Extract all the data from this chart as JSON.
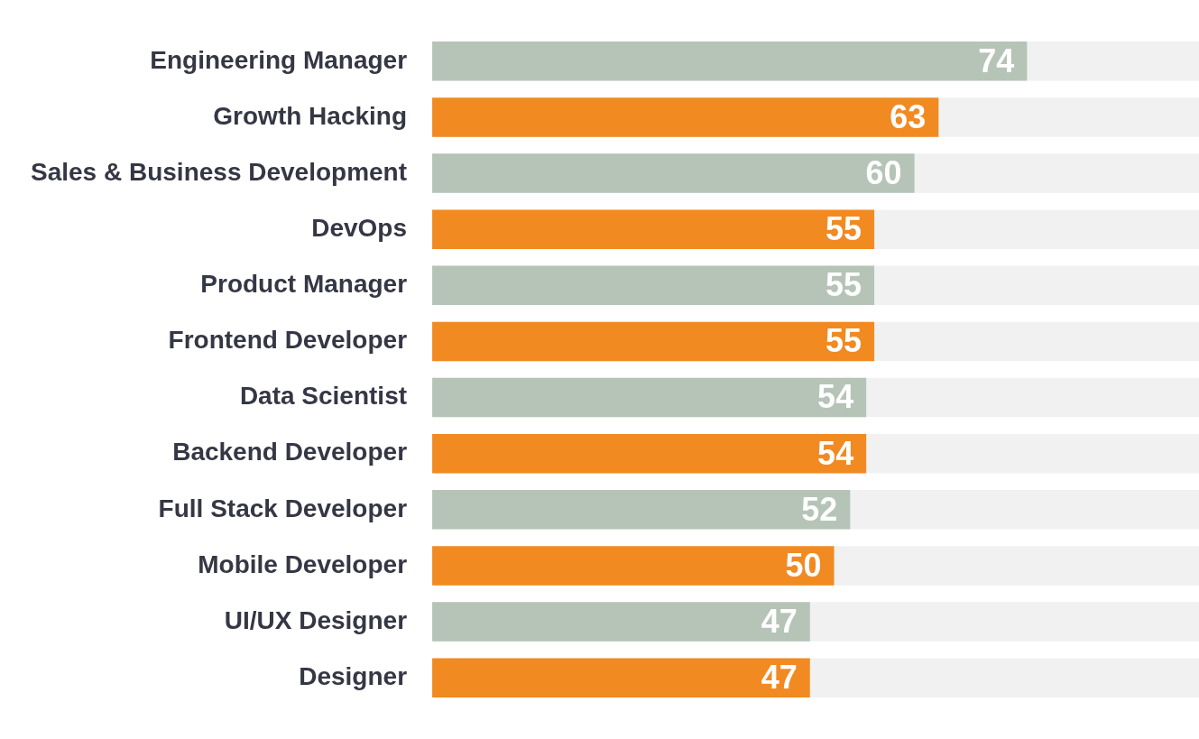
{
  "chart_data": {
    "type": "bar",
    "orientation": "horizontal",
    "categories": [
      "Engineering Manager",
      "Growth Hacking",
      "Sales & Business Development",
      "DevOps",
      "Product Manager",
      "Frontend Developer",
      "Data Scientist",
      "Backend Developer",
      "Full Stack Developer",
      "Mobile Developer",
      "UI/UX Designer",
      "Designer"
    ],
    "values": [
      74,
      63,
      60,
      55,
      55,
      55,
      54,
      54,
      52,
      50,
      47,
      47
    ],
    "colors": [
      "#b5c4b7",
      "#f28a22",
      "#b5c4b7",
      "#f28a22",
      "#b5c4b7",
      "#f28a22",
      "#b5c4b7",
      "#f28a22",
      "#b5c4b7",
      "#f28a22",
      "#b5c4b7",
      "#f28a22"
    ],
    "xlim": [
      0,
      95.4
    ],
    "tick_labels": "y",
    "data_labels": true
  }
}
